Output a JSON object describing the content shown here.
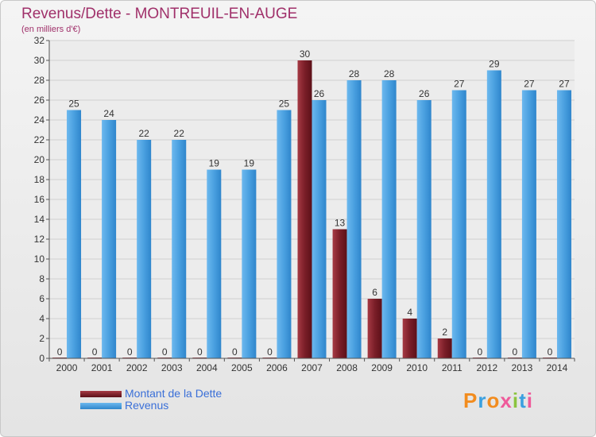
{
  "header": {
    "title": "Revenus/Dette - MONTREUIL-EN-AUGE",
    "subtitle": "(en milliers d'€)"
  },
  "brand": {
    "text": "Proxiti",
    "letter_colors": [
      "#f28c1e",
      "#3aa0e0",
      "#f28c1e",
      "#ef5a9a",
      "#8bc43f",
      "#3aa0e0",
      "#ef5a9a"
    ]
  },
  "chart_data": {
    "type": "bar",
    "categories": [
      "2000",
      "2001",
      "2002",
      "2003",
      "2004",
      "2005",
      "2006",
      "2007",
      "2008",
      "2009",
      "2010",
      "2011",
      "2012",
      "2013",
      "2014"
    ],
    "series": [
      {
        "name": "Montant de la Dette",
        "color": "#7a1e28",
        "values": [
          0,
          0,
          0,
          0,
          0,
          0,
          0,
          30,
          13,
          6,
          4,
          2,
          0,
          0,
          0
        ]
      },
      {
        "name": "Revenus",
        "color": "#4aa0e0",
        "values": [
          25,
          24,
          22,
          22,
          19,
          19,
          25,
          26,
          28,
          28,
          26,
          27,
          29,
          27,
          27
        ]
      }
    ],
    "ylim": [
      0,
      32
    ],
    "yticks": [
      0,
      2,
      4,
      6,
      8,
      10,
      12,
      14,
      16,
      18,
      20,
      22,
      24,
      26,
      28,
      30,
      32
    ],
    "grid": true,
    "legend": "bottom-left"
  }
}
